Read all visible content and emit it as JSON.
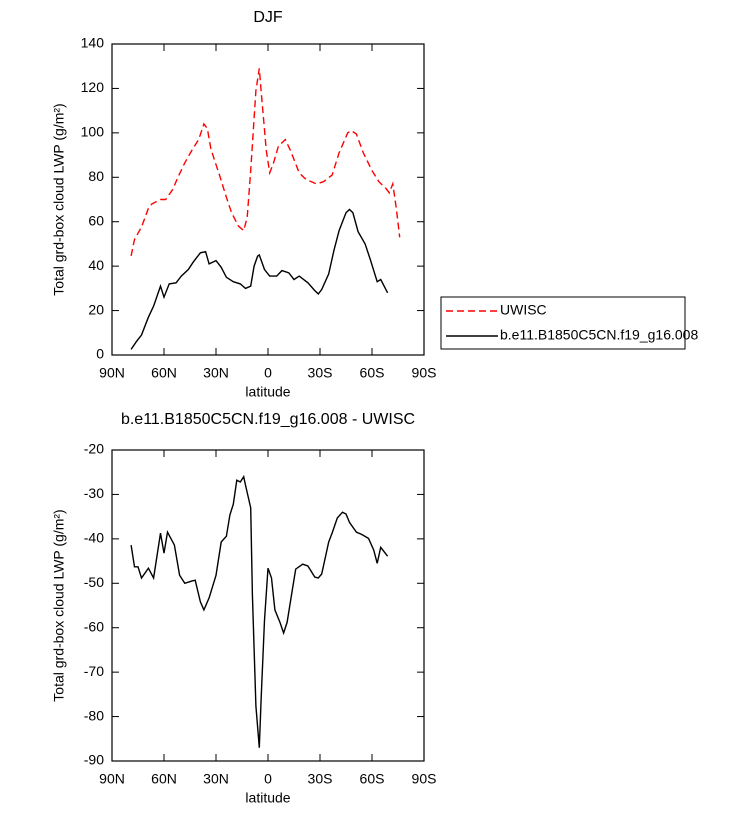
{
  "chart_data": [
    {
      "type": "line",
      "title": "DJF",
      "x_label": "latitude",
      "y_label": "Total grd-box cloud LWP (g/m²)",
      "xlim": [
        90,
        -90
      ],
      "xticks": [
        {
          "value": 90,
          "label": "90N"
        },
        {
          "value": 60,
          "label": "60N"
        },
        {
          "value": 30,
          "label": "30N"
        },
        0,
        {
          "value": -30,
          "label": "30S"
        },
        {
          "value": -60,
          "label": "60S"
        },
        {
          "value": -90,
          "label": "90S"
        }
      ],
      "ylim": [
        0,
        140
      ],
      "yticks": [
        0,
        20,
        40,
        60,
        80,
        100,
        120,
        140
      ],
      "legend": "outside right",
      "series": [
        {
          "name": "UWISC",
          "color": "#ff0000",
          "linestyle": "dashed",
          "x": [
            79,
            77,
            73,
            69,
            67,
            62,
            59,
            55,
            52,
            48,
            44,
            40,
            37,
            35,
            33,
            31,
            28,
            24,
            21,
            17,
            14,
            12,
            10,
            7,
            5,
            4,
            1,
            -1,
            -3,
            -6,
            -10,
            -13,
            -18,
            -22,
            -28,
            -32,
            -37,
            -41,
            -46,
            -48,
            -51,
            -55,
            -60,
            -64,
            -68,
            -70,
            -72,
            -74,
            -76
          ],
          "values": [
            44.6,
            52,
            57.6,
            66,
            68,
            70,
            70,
            74.5,
            80,
            86.5,
            92,
            97,
            104,
            102,
            93,
            88,
            81,
            71,
            64,
            58,
            56,
            62,
            83,
            119,
            129,
            119,
            92,
            82,
            86,
            94,
            97,
            92,
            82,
            79,
            77,
            78,
            81,
            91,
            100,
            101,
            99.5,
            91,
            83,
            78,
            75,
            73,
            77,
            66,
            53
          ]
        },
        {
          "name": "b.e11.B1850C5CN.f19_g16.008",
          "color": "#000000",
          "linestyle": "solid",
          "x": [
            79,
            76,
            73,
            69,
            66,
            62,
            60,
            57,
            53,
            50,
            46,
            43,
            39,
            36,
            34,
            30,
            27,
            24,
            20,
            16,
            13,
            10,
            8,
            6,
            5,
            2,
            -1,
            -5,
            -8,
            -12,
            -15,
            -18,
            -23,
            -27,
            -29,
            -31,
            -35,
            -38,
            -41,
            -45,
            -47,
            -49,
            -52,
            -56,
            -59,
            -63,
            -65,
            -69
          ],
          "values": [
            2.5,
            6,
            9,
            17,
            22,
            31,
            26,
            32,
            32.5,
            35.5,
            38.5,
            42,
            46,
            46.5,
            41,
            42.5,
            39.5,
            35,
            33,
            32,
            30,
            31,
            40,
            44.5,
            45,
            38.5,
            35.5,
            35.5,
            38,
            37,
            34,
            35.5,
            32.5,
            29,
            27.5,
            29.5,
            36.5,
            47,
            56,
            64,
            65.5,
            64,
            55.5,
            50,
            43,
            33,
            34,
            28
          ]
        }
      ]
    },
    {
      "type": "line",
      "title": "b.e11.B1850C5CN.f19_g16.008 - UWISC",
      "x_label": "latitude",
      "y_label": "Total grd-box cloud LWP (g/m²)",
      "xlim": [
        90,
        -90
      ],
      "xticks": [
        {
          "value": 90,
          "label": "90N"
        },
        {
          "value": 60,
          "label": "60N"
        },
        {
          "value": 30,
          "label": "30N"
        },
        0,
        {
          "value": -30,
          "label": "30S"
        },
        {
          "value": -60,
          "label": "60S"
        },
        {
          "value": -90,
          "label": "90S"
        }
      ],
      "ylim": [
        -90,
        -20
      ],
      "yticks": [
        -90,
        -80,
        -70,
        -60,
        -50,
        -40,
        -30,
        -20
      ],
      "series": [
        {
          "color": "#000000",
          "linestyle": "solid",
          "x": [
            79,
            77,
            75,
            73,
            69,
            66,
            62,
            60,
            58,
            54,
            51,
            48,
            44,
            42,
            39,
            37,
            34,
            30,
            27,
            24,
            22,
            20,
            18,
            16,
            14,
            13,
            10,
            9,
            7,
            5,
            4,
            2,
            0,
            -2,
            -4,
            -7,
            -9,
            -11,
            -14,
            -16,
            -20,
            -23,
            -27,
            -29,
            -31,
            -35,
            -37,
            -40,
            -43,
            -45,
            -47,
            -51,
            -54,
            -58,
            -61,
            -63,
            -65,
            -69
          ],
          "values": [
            -41.4,
            -46.3,
            -46.3,
            -48.8,
            -46.6,
            -48.8,
            -38.7,
            -43.2,
            -38.5,
            -41.4,
            -48.2,
            -50,
            -49.5,
            -49.3,
            -54.2,
            -56,
            -53.3,
            -48.2,
            -40.7,
            -39.4,
            -34.6,
            -32.2,
            -26.8,
            -27.2,
            -26,
            -27.9,
            -33,
            -52.6,
            -77.6,
            -87,
            -76.2,
            -58.3,
            -46.6,
            -48.8,
            -56,
            -58.9,
            -61.2,
            -58.8,
            -51.5,
            -46.8,
            -45.7,
            -46.1,
            -48.6,
            -48.8,
            -47.9,
            -40.7,
            -38.7,
            -35.3,
            -34,
            -34.4,
            -36.3,
            -38.5,
            -39,
            -39.9,
            -42.5,
            -45.5,
            -41.9,
            -43.9
          ]
        }
      ]
    }
  ]
}
